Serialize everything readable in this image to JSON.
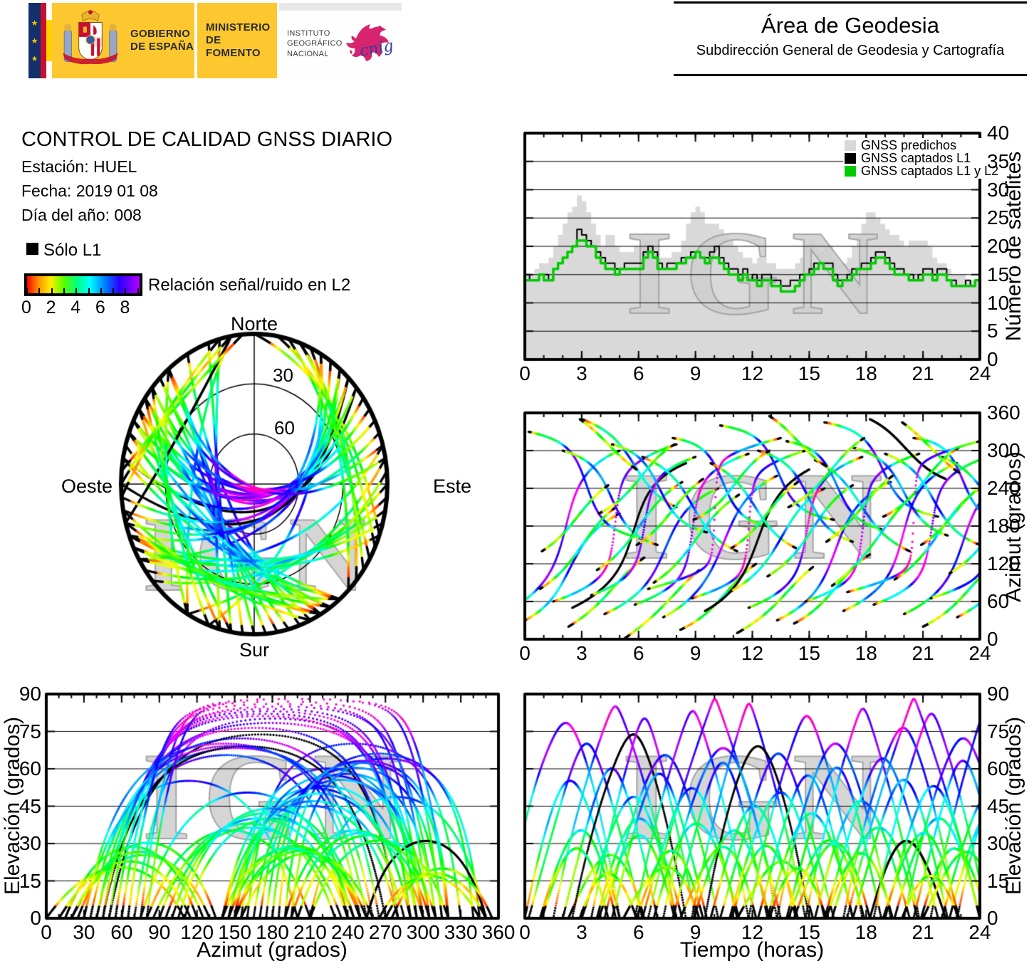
{
  "header": {
    "gobierno": "GOBIERNO\nDE ESPAÑA",
    "ministerio": "MINISTERIO\nDE FOMENTO",
    "instituto": "INSTITUTO\nGEOGRÁFICO\nNACIONAL",
    "cnig": "cnig",
    "stars": "★",
    "area_title": "Área de Geodesia",
    "area_subtitle": "Subdirección General de Geodesia y Cartografía"
  },
  "info": {
    "title": "CONTROL DE CALIDAD GNSS DIARIO",
    "station": "Estación: HUEL",
    "date": "Fecha: 2019 01 08",
    "doy": "Día del año: 008"
  },
  "snr_legend": {
    "solo_l1": "Sólo L1",
    "colorbar_label": "Relación señal/ruido en L2",
    "colorbar_min": 0,
    "colorbar_max": 9,
    "colorbar_tick_labels": [
      0,
      2,
      4,
      6,
      8
    ]
  },
  "watermark": "IGN",
  "chart_data": [
    {
      "id": "sat_count",
      "type": "line",
      "title": "",
      "xlabel": "",
      "ylabel": "Número de satélites",
      "xlim": [
        0,
        24
      ],
      "ylim": [
        0,
        40
      ],
      "xticks": [
        0,
        3,
        6,
        9,
        12,
        15,
        18,
        21,
        24
      ],
      "yticks": [
        0,
        5,
        10,
        15,
        20,
        25,
        30,
        35,
        40
      ],
      "grid": "horizontal",
      "legend_position": "top-right-inside",
      "dt_hours": 0.25,
      "series": [
        {
          "name": "GNSS predichos",
          "style": "filled-steps",
          "color": "#d9d9d9",
          "values": [
            15,
            15,
            16,
            17,
            17,
            18,
            20,
            22,
            24,
            26,
            27,
            29,
            28,
            26,
            24,
            22,
            20,
            22,
            22,
            20,
            19,
            19,
            19,
            20,
            20,
            21,
            21,
            19,
            18,
            18,
            18,
            19,
            19,
            21,
            24,
            26,
            27,
            26,
            24,
            24,
            24,
            23,
            22,
            21,
            20,
            19,
            18,
            18,
            17,
            18,
            18,
            17,
            17,
            16,
            16,
            16,
            16,
            17,
            18,
            20,
            21,
            20,
            19,
            20,
            20,
            18,
            17,
            17,
            18,
            20,
            22,
            24,
            26,
            26,
            25,
            24,
            23,
            22,
            22,
            21,
            20,
            21,
            21,
            21,
            21,
            20,
            18,
            17,
            17,
            16,
            15,
            15,
            15,
            14,
            14,
            14,
            14
          ]
        },
        {
          "name": "GNSS captados L1",
          "style": "steps",
          "color": "#000000",
          "values": [
            15,
            14,
            14,
            15,
            15,
            14,
            16,
            17,
            18,
            19,
            20,
            23,
            22,
            21,
            20,
            19,
            18,
            17,
            17,
            16,
            16,
            17,
            17,
            17,
            17,
            19,
            20,
            19,
            17,
            16,
            17,
            17,
            17,
            18,
            18,
            19,
            19,
            18,
            18,
            19,
            20,
            18,
            17,
            16,
            16,
            15,
            16,
            14,
            15,
            14,
            15,
            15,
            14,
            14,
            13,
            13,
            14,
            14,
            15,
            15,
            16,
            17,
            17,
            17,
            17,
            15,
            14,
            14,
            15,
            16,
            16,
            17,
            17,
            18,
            19,
            19,
            18,
            17,
            16,
            16,
            15,
            15,
            14,
            15,
            16,
            16,
            15,
            16,
            16,
            14,
            14,
            13,
            13,
            14,
            13,
            14,
            14
          ]
        },
        {
          "name": "GNSS captados L1 y L2",
          "style": "steps",
          "color": "#00cc00",
          "values": [
            14,
            14,
            14,
            15,
            14,
            14,
            16,
            17,
            18,
            19,
            20,
            21,
            21,
            20,
            20,
            18,
            17,
            16,
            16,
            15,
            16,
            16,
            16,
            16,
            16,
            18,
            19,
            18,
            16,
            16,
            16,
            16,
            17,
            17,
            18,
            18,
            19,
            18,
            17,
            18,
            18,
            17,
            16,
            15,
            15,
            14,
            15,
            14,
            14,
            13,
            14,
            14,
            13,
            13,
            12,
            12,
            12,
            13,
            14,
            15,
            15,
            16,
            17,
            16,
            16,
            14,
            13,
            14,
            14,
            15,
            16,
            16,
            16,
            17,
            18,
            18,
            17,
            16,
            15,
            15,
            15,
            14,
            14,
            14,
            15,
            15,
            14,
            15,
            15,
            14,
            13,
            13,
            13,
            13,
            13,
            14,
            14
          ]
        }
      ]
    },
    {
      "id": "skyplot",
      "type": "scatter",
      "projection": "polar-sky",
      "compass": {
        "north": "Norte",
        "south": "Sur",
        "east": "Este",
        "west": "Oeste"
      },
      "rings": [
        "30",
        "60"
      ],
      "ring_elevations": [
        30,
        60
      ],
      "note": "satellite tracks colored by L2 signal-to-noise ratio; black where L1 only"
    },
    {
      "id": "azimuth_vs_time",
      "type": "scatter",
      "xlabel": "",
      "ylabel": "Azimut (grados)",
      "xlim": [
        0,
        24
      ],
      "ylim": [
        0,
        360
      ],
      "xticks": [
        0,
        3,
        6,
        9,
        12,
        15,
        18,
        21,
        24
      ],
      "yticks": [
        0,
        60,
        120,
        180,
        240,
        300,
        360
      ],
      "grid": "horizontal"
    },
    {
      "id": "elevation_vs_azimuth",
      "type": "scatter",
      "xlabel": "Azimut (grados)",
      "ylabel": "Elevación (grados)",
      "xlim": [
        0,
        360
      ],
      "ylim": [
        0,
        90
      ],
      "xticks": [
        0,
        30,
        60,
        90,
        120,
        150,
        180,
        210,
        240,
        270,
        300,
        330,
        360
      ],
      "yticks": [
        0,
        15,
        30,
        45,
        60,
        75,
        90
      ],
      "grid": "horizontal"
    },
    {
      "id": "elevation_vs_time",
      "type": "scatter",
      "xlabel": "Tiempo (horas)",
      "ylabel": "Elevación (grados)",
      "xlim": [
        0,
        24
      ],
      "ylim": [
        0,
        90
      ],
      "xticks": [
        0,
        3,
        6,
        9,
        12,
        15,
        18,
        21,
        24
      ],
      "yticks": [
        0,
        15,
        30,
        45,
        60,
        75,
        90
      ],
      "grid": "horizontal"
    },
    {
      "id": "satellite_tracks",
      "type": "satellite-passes",
      "format": [
        "t0_hours",
        "duration_hours",
        "az_rise_deg",
        "az_peak_deg",
        "az_set_deg",
        "el_max_deg",
        "l1_only"
      ],
      "passes": [
        [
          -1.0,
          6,
          45,
          160,
          300,
          78,
          0
        ],
        [
          0.0,
          5,
          30,
          120,
          200,
          55,
          0
        ],
        [
          0.2,
          6,
          330,
          250,
          160,
          70,
          0
        ],
        [
          0.8,
          4,
          80,
          140,
          210,
          35,
          0
        ],
        [
          1.5,
          6.5,
          60,
          180,
          310,
          85,
          0
        ],
        [
          2.0,
          5,
          300,
          230,
          150,
          60,
          0
        ],
        [
          2.3,
          4,
          20,
          70,
          130,
          25,
          0
        ],
        [
          2.5,
          6,
          50,
          150,
          280,
          73,
          1
        ],
        [
          3.0,
          5,
          350,
          290,
          210,
          48,
          0
        ],
        [
          3.5,
          5.5,
          70,
          170,
          290,
          80,
          0
        ],
        [
          3.8,
          4.5,
          110,
          180,
          250,
          40,
          0
        ],
        [
          4.2,
          6,
          40,
          130,
          240,
          65,
          0
        ],
        [
          4.6,
          5,
          310,
          240,
          170,
          58,
          0
        ],
        [
          5.2,
          4,
          0,
          50,
          110,
          20,
          0
        ],
        [
          5.8,
          6,
          55,
          165,
          295,
          83,
          0
        ],
        [
          6.2,
          5,
          290,
          220,
          140,
          52,
          0
        ],
        [
          6.8,
          4.5,
          90,
          160,
          230,
          38,
          0
        ],
        [
          7.3,
          6,
          35,
          140,
          260,
          68,
          0
        ],
        [
          7.8,
          5,
          320,
          260,
          180,
          62,
          0
        ],
        [
          8.2,
          4,
          15,
          60,
          120,
          28,
          0
        ],
        [
          8.8,
          6,
          65,
          175,
          300,
          86,
          0
        ],
        [
          9.5,
          5.5,
          45,
          155,
          270,
          69,
          1
        ],
        [
          9.8,
          4.5,
          280,
          215,
          145,
          45,
          0
        ],
        [
          10.3,
          6,
          340,
          270,
          190,
          66,
          0
        ],
        [
          10.8,
          5,
          75,
          150,
          240,
          50,
          0
        ],
        [
          11.2,
          4,
          10,
          55,
          115,
          22,
          0
        ],
        [
          11.8,
          6,
          50,
          160,
          290,
          81,
          0
        ],
        [
          12.3,
          5,
          300,
          235,
          155,
          57,
          0
        ],
        [
          12.8,
          4.5,
          100,
          170,
          245,
          42,
          0
        ],
        [
          13.3,
          6,
          30,
          135,
          250,
          70,
          0
        ],
        [
          13.8,
          5,
          315,
          255,
          175,
          60,
          0
        ],
        [
          14.2,
          4,
          25,
          75,
          135,
          30,
          0
        ],
        [
          14.8,
          6,
          60,
          170,
          295,
          84,
          0
        ],
        [
          15.3,
          5,
          285,
          210,
          140,
          47,
          0
        ],
        [
          15.8,
          6,
          345,
          275,
          195,
          64,
          0
        ],
        [
          16.2,
          4.5,
          85,
          155,
          235,
          36,
          0
        ],
        [
          16.8,
          6,
          45,
          150,
          280,
          76,
          0
        ],
        [
          17.3,
          5,
          305,
          245,
          165,
          55,
          0
        ],
        [
          18.2,
          4,
          350,
          300,
          255,
          31,
          1
        ],
        [
          18.4,
          6,
          55,
          165,
          290,
          82,
          0
        ],
        [
          19.0,
          5,
          295,
          225,
          150,
          53,
          0
        ],
        [
          19.5,
          4.5,
          95,
          165,
          240,
          40,
          0
        ],
        [
          20.0,
          6,
          40,
          145,
          265,
          72,
          0
        ],
        [
          20.5,
          5,
          320,
          260,
          185,
          63,
          0
        ],
        [
          21.0,
          4,
          20,
          65,
          125,
          26,
          0
        ],
        [
          21.4,
          6,
          65,
          180,
          305,
          87,
          0
        ],
        [
          22.0,
          5,
          290,
          220,
          145,
          50,
          0
        ],
        [
          22.4,
          4.5,
          105,
          175,
          250,
          44,
          0
        ],
        [
          22.8,
          6,
          35,
          140,
          255,
          69,
          0
        ],
        [
          3.9,
          4,
          200,
          250,
          310,
          33,
          0
        ],
        [
          8.9,
          4,
          190,
          240,
          300,
          35,
          0
        ],
        [
          13.9,
          4,
          210,
          260,
          320,
          31,
          0
        ],
        [
          18.9,
          4,
          195,
          245,
          305,
          34,
          0
        ],
        [
          0.9,
          3.5,
          140,
          190,
          245,
          28,
          0
        ],
        [
          5.9,
          3.5,
          150,
          200,
          255,
          27,
          0
        ],
        [
          10.9,
          3.5,
          145,
          195,
          250,
          29,
          0
        ],
        [
          15.9,
          3.5,
          155,
          205,
          260,
          26,
          0
        ],
        [
          20.9,
          3.5,
          150,
          200,
          250,
          28,
          0
        ],
        [
          2.9,
          3,
          350,
          310,
          270,
          18,
          0
        ],
        [
          12.9,
          3,
          355,
          315,
          275,
          20,
          0
        ],
        [
          19.9,
          3,
          345,
          305,
          265,
          17,
          0
        ],
        [
          6.5,
          7,
          80,
          190,
          320,
          88,
          0
        ],
        [
          17.0,
          7,
          75,
          185,
          315,
          88,
          0
        ]
      ]
    }
  ]
}
